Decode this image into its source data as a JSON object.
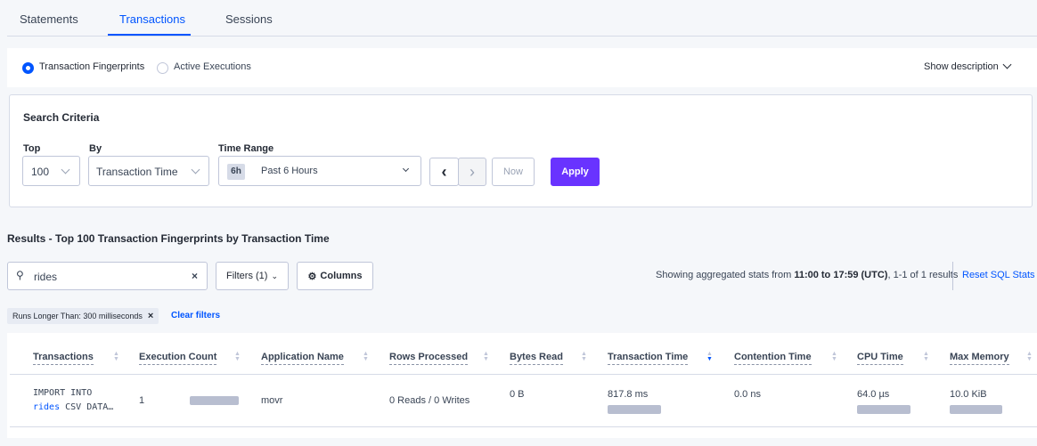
{
  "tabs": [
    {
      "label": "Statements"
    },
    {
      "label": "Transactions",
      "active": true
    },
    {
      "label": "Sessions"
    }
  ],
  "view": {
    "options": [
      "Transaction Fingerprints",
      "Active Executions"
    ],
    "selected": "Transaction Fingerprints",
    "show_description": "Show description"
  },
  "search": {
    "title": "Search Criteria",
    "top_label": "Top",
    "top_value": "100",
    "by_label": "By",
    "by_value": "Transaction Time",
    "time_label": "Time Range",
    "time_badge": "6h",
    "time_value": "Past 6 Hours",
    "now": "Now",
    "apply": "Apply"
  },
  "results": {
    "title": "Results - Top 100 Transaction Fingerprints by Transaction Time",
    "search_value": "rides",
    "filters": "Filters (1)",
    "columns": "Columns",
    "stats_prefix": "Showing aggregated stats from ",
    "stats_range": "11:00 to 17:59 (UTC)",
    "stats_suffix": ", 1-1 of 1 results",
    "reset": "Reset SQL Stats",
    "filter_tag": "Runs Longer Than: 300 milliseconds",
    "clear": "Clear filters"
  },
  "table": {
    "headers": [
      "Transactions",
      "Execution Count",
      "Application Name",
      "Rows Processed",
      "Bytes Read",
      "Transaction Time",
      "Contention Time",
      "CPU Time",
      "Max Memory"
    ],
    "sorted_column": "Transaction Time",
    "sort_direction": "descending",
    "rows": [
      {
        "txn_line1": "IMPORT INTO",
        "txn_highlight": "rides",
        "txn_rest": " CSV DATA…",
        "exec_count": "1",
        "app": "movr",
        "rows": "0 Reads / 0 Writes",
        "bytes": "0 B",
        "txn_time": "817.8 ms",
        "contention": "0.0 ns",
        "cpu": "64.0 µs",
        "memory": "10.0 KiB"
      }
    ]
  },
  "colors": {
    "accent": "#0055ff",
    "apply": "#6933ff",
    "bar": "#b8bed0"
  }
}
